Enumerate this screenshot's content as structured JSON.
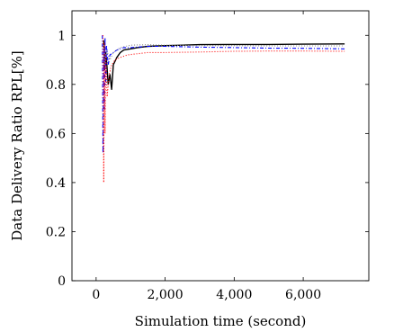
{
  "chart_data": {
    "type": "line",
    "title": "",
    "xlabel": "Simulation time (second)",
    "ylabel": "Data Delivery Ratio RPL[%]",
    "xlim": [
      -700,
      7900
    ],
    "ylim": [
      0,
      1.1
    ],
    "xticks": [
      0,
      2000,
      4000,
      6000
    ],
    "xtick_labels": [
      "0",
      "2,000",
      "4,000",
      "6,000"
    ],
    "yticks": [
      0,
      0.2,
      0.4,
      0.6,
      0.8,
      1.0
    ],
    "ytick_labels": [
      "0",
      "0.2",
      "0.4",
      "0.6",
      "0.8",
      "1"
    ],
    "grid": false,
    "legend": "none",
    "series": [
      {
        "color": "#000000",
        "style": "solid",
        "x": [
          220,
          250,
          280,
          310,
          350,
          400,
          450,
          500,
          600,
          700,
          800,
          1000,
          1200,
          1500,
          2000,
          2500,
          3000,
          4000,
          5000,
          6000,
          7200
        ],
        "y": [
          0.98,
          0.86,
          0.93,
          0.88,
          0.8,
          0.84,
          0.78,
          0.88,
          0.91,
          0.93,
          0.94,
          0.945,
          0.95,
          0.955,
          0.958,
          0.96,
          0.962,
          0.963,
          0.963,
          0.964,
          0.965
        ]
      },
      {
        "color": "#0000ff",
        "style": "dashdot",
        "x": [
          180,
          200,
          220,
          240,
          260,
          280,
          300,
          350,
          400,
          500,
          600,
          800,
          1000,
          1500,
          2000,
          3000,
          4000,
          5000,
          6000,
          7200
        ],
        "y": [
          1.0,
          0.52,
          0.95,
          0.7,
          0.99,
          0.8,
          0.96,
          0.88,
          0.92,
          0.93,
          0.94,
          0.95,
          0.95,
          0.955,
          0.955,
          0.952,
          0.95,
          0.948,
          0.947,
          0.945
        ]
      },
      {
        "color": "#ff0000",
        "style": "dotted",
        "x": [
          200,
          220,
          240,
          260,
          280,
          320,
          380,
          450,
          550,
          700,
          900,
          1200,
          1500,
          2000,
          3000,
          4000,
          5000,
          6000,
          7200
        ],
        "y": [
          1.0,
          0.4,
          0.97,
          0.6,
          0.92,
          0.75,
          0.84,
          0.88,
          0.9,
          0.91,
          0.92,
          0.925,
          0.93,
          0.93,
          0.932,
          0.935,
          0.936,
          0.936,
          0.935
        ]
      },
      {
        "color": "#888888",
        "style": "dotted",
        "x": [
          220,
          250,
          300,
          400,
          500,
          700,
          1000,
          1500,
          2000,
          3000,
          4000,
          5000,
          6000,
          7200
        ],
        "y": [
          0.96,
          0.88,
          0.94,
          0.9,
          0.93,
          0.95,
          0.96,
          0.962,
          0.96,
          0.958,
          0.958,
          0.957,
          0.957,
          0.957
        ]
      }
    ]
  }
}
